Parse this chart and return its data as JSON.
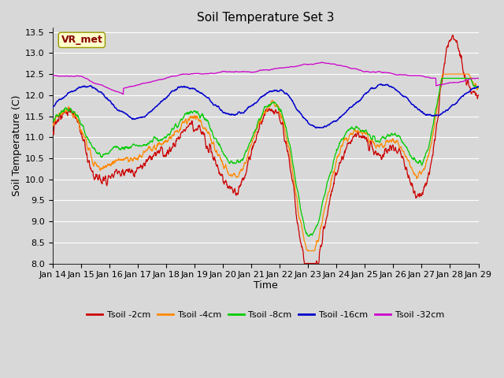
{
  "title": "Soil Temperature Set 3",
  "xlabel": "Time",
  "ylabel": "Soil Temperature (C)",
  "ylim": [
    8.0,
    13.6
  ],
  "yticks": [
    8.0,
    8.5,
    9.0,
    9.5,
    10.0,
    10.5,
    11.0,
    11.5,
    12.0,
    12.5,
    13.0,
    13.5
  ],
  "xtick_labels": [
    "Jan 14",
    "Jan 15",
    "Jan 16",
    "Jan 17",
    "Jan 18",
    "Jan 19",
    "Jan 20",
    "Jan 21",
    "Jan 22",
    "Jan 23",
    "Jan 24",
    "Jan 25",
    "Jan 26",
    "Jan 27",
    "Jan 28",
    "Jan 29"
  ],
  "colors": {
    "t2": "#cc0000",
    "t4": "#ff8800",
    "t8": "#00cc00",
    "t16": "#0000cc",
    "t32": "#cc00cc"
  },
  "legend_labels": [
    "Tsoil -2cm",
    "Tsoil -4cm",
    "Tsoil -8cm",
    "Tsoil -16cm",
    "Tsoil -32cm"
  ],
  "bg_color": "#d8d8d8",
  "grid_color": "#ffffff",
  "ann_text": "VR_met",
  "ann_bg": "#ffffcc",
  "ann_edge": "#999900",
  "ann_fg": "#880000",
  "title_fontsize": 11,
  "axis_fontsize": 9,
  "tick_fontsize": 8,
  "legend_fontsize": 8
}
